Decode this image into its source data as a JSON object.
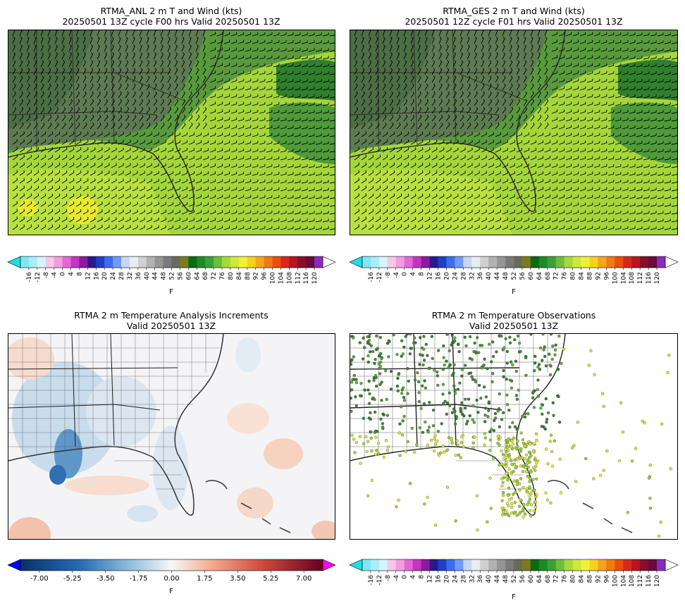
{
  "panels": [
    {
      "id": "anl",
      "title_line1": "RTMA_ANL 2 m T and Wind (kts)",
      "title_line2": "20250501 13Z cycle F00 hrs Valid 20250501 13Z",
      "colorbar": "temperature",
      "units": "F"
    },
    {
      "id": "ges",
      "title_line1": "RTMA_GES 2 m T and Wind (kts)",
      "title_line2": "20250501 12Z cycle F01 hrs Valid 20250501 13Z",
      "colorbar": "temperature",
      "units": "F"
    },
    {
      "id": "inc",
      "title_line1": "RTMA 2 m Temperature Analysis Increments",
      "title_line2": "Valid 20250501 13Z",
      "colorbar": "increment",
      "units": "F"
    },
    {
      "id": "obs",
      "title_line1": "RTMA 2 m Temperature Observations",
      "title_line2": "Valid 20250501 13Z",
      "colorbar": "temperature",
      "units": "F"
    }
  ],
  "temperature_colorbar": {
    "ticks": [
      "-16",
      "-12",
      "-8",
      "-4",
      "0",
      "4",
      "8",
      "12",
      "16",
      "20",
      "24",
      "28",
      "32",
      "36",
      "40",
      "44",
      "48",
      "52",
      "56",
      "60",
      "64",
      "68",
      "72",
      "76",
      "80",
      "84",
      "88",
      "92",
      "96",
      "100",
      "104",
      "108",
      "112",
      "116",
      "120"
    ],
    "colors": [
      "#7de8f4",
      "#a9eefa",
      "#d6f4fb",
      "#f7c6ea",
      "#f09ee0",
      "#e566d6",
      "#c733c4",
      "#8a1a9e",
      "#2b1a8e",
      "#1f3fc6",
      "#3e6cf0",
      "#6e9bf7",
      "#c7d6f1",
      "#e8ecf4",
      "#d0d0d0",
      "#b2b2b2",
      "#959595",
      "#7a7a7a",
      "#6a6a5a",
      "#7a7a20",
      "#0b6b12",
      "#1e8a26",
      "#3aa13a",
      "#6fbe3c",
      "#a8d83a",
      "#cde83a",
      "#f0f03a",
      "#f6d21e",
      "#f3a51e",
      "#f07a14",
      "#e8500c",
      "#d8281a",
      "#b81422",
      "#8a0e2a",
      "#6a0a3e",
      "#8a2abe"
    ],
    "under_color": "#19e0e8",
    "over_color": "#ffffff"
  },
  "increment_colorbar": {
    "ticks": [
      "-7.00",
      "-5.25",
      "-3.50",
      "-1.75",
      "0.00",
      "1.75",
      "3.50",
      "5.25",
      "7.00"
    ],
    "range": [
      -8,
      8
    ],
    "under_color": "#0000ff",
    "over_color": "#ff00ff"
  }
}
